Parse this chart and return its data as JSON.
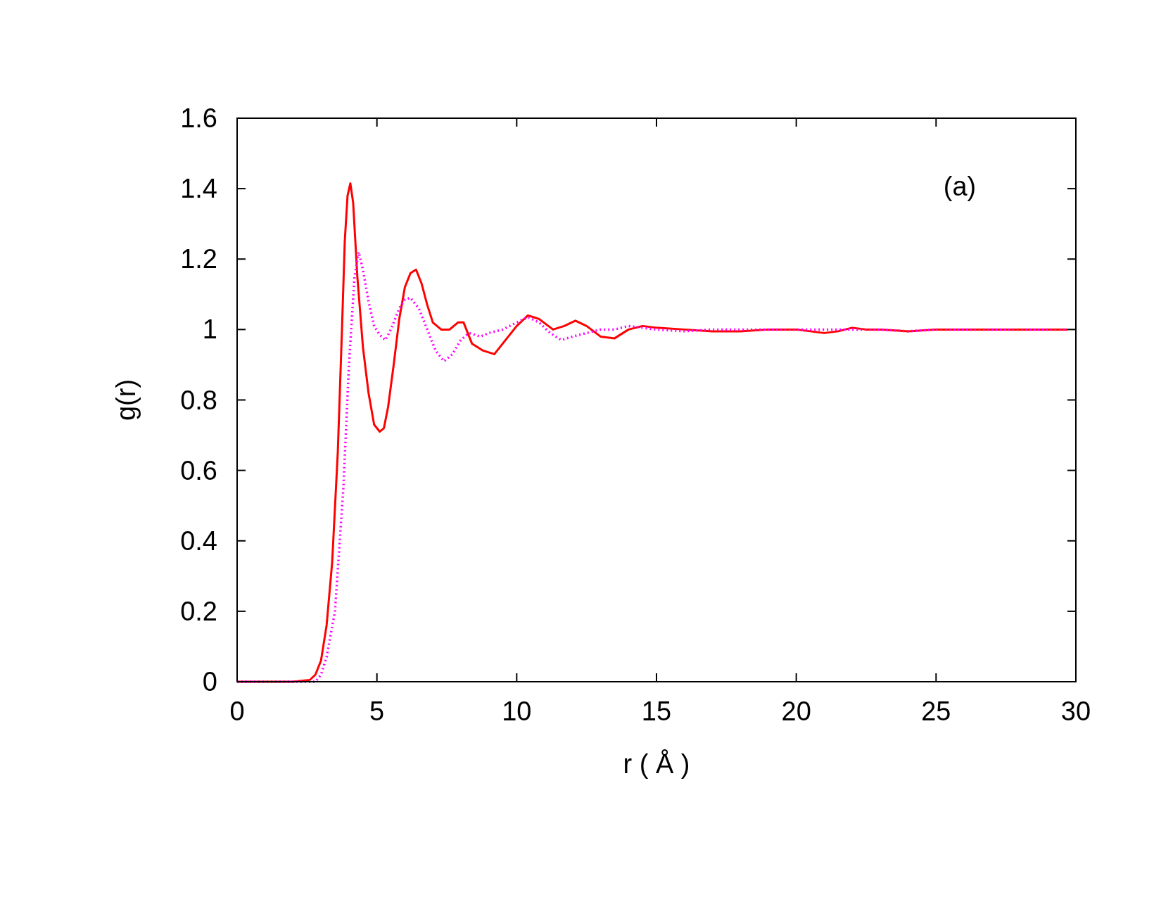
{
  "chart_data": {
    "type": "line",
    "xlabel": "r ( Å )",
    "ylabel": "g(r)",
    "annotations": [
      "(a)"
    ],
    "xlim": [
      0,
      30
    ],
    "ylim": [
      0,
      1.6
    ],
    "xticks": [
      0,
      5,
      10,
      15,
      20,
      25,
      30
    ],
    "yticks": [
      0,
      0.2,
      0.4,
      0.6,
      0.8,
      1,
      1.2,
      1.4,
      1.6
    ],
    "grid": false,
    "series": [
      {
        "color": "#ff0000",
        "line_style": "solid",
        "x": [
          0,
          1,
          2,
          2.6,
          2.8,
          3.0,
          3.2,
          3.4,
          3.6,
          3.75,
          3.85,
          3.95,
          4.05,
          4.15,
          4.3,
          4.5,
          4.7,
          4.9,
          5.1,
          5.25,
          5.4,
          5.6,
          5.8,
          6.0,
          6.2,
          6.4,
          6.6,
          6.8,
          7.0,
          7.3,
          7.6,
          7.9,
          8.1,
          8.4,
          8.8,
          9.2,
          9.6,
          10.0,
          10.4,
          10.8,
          11.3,
          11.7,
          12.1,
          12.5,
          13.0,
          13.5,
          14.0,
          14.5,
          15.0,
          16,
          17,
          18,
          19,
          20,
          21,
          21.5,
          22,
          22.5,
          23,
          24,
          25,
          26,
          27,
          28,
          29,
          29.7
        ],
        "values": [
          0,
          0,
          0,
          0.005,
          0.02,
          0.06,
          0.16,
          0.34,
          0.65,
          1.0,
          1.25,
          1.38,
          1.415,
          1.36,
          1.15,
          0.95,
          0.82,
          0.73,
          0.71,
          0.72,
          0.78,
          0.9,
          1.03,
          1.12,
          1.16,
          1.17,
          1.13,
          1.07,
          1.02,
          1.0,
          1.0,
          1.02,
          1.02,
          0.96,
          0.94,
          0.93,
          0.97,
          1.01,
          1.04,
          1.03,
          1.0,
          1.01,
          1.025,
          1.01,
          0.98,
          0.975,
          1.0,
          1.01,
          1.005,
          1.0,
          0.995,
          0.995,
          1.0,
          1.0,
          0.99,
          0.995,
          1.005,
          1.0,
          1.0,
          0.995,
          1.0,
          1.0,
          1.0,
          1.0,
          1.0,
          1.0
        ]
      },
      {
        "color": "#ff00ff",
        "line_style": "dotted",
        "x": [
          0,
          1,
          2,
          2.8,
          3.0,
          3.2,
          3.5,
          3.8,
          4.0,
          4.2,
          4.35,
          4.5,
          4.7,
          4.9,
          5.1,
          5.3,
          5.5,
          5.8,
          6.0,
          6.2,
          6.5,
          6.8,
          7.1,
          7.4,
          7.7,
          8.0,
          8.3,
          8.7,
          9.0,
          9.5,
          10.0,
          10.4,
          10.8,
          11.2,
          11.6,
          12.0,
          12.5,
          13.0,
          13.5,
          14.0,
          14.5,
          15,
          16,
          17,
          18,
          19,
          20,
          21,
          22,
          23,
          24,
          25,
          26,
          27,
          28,
          29,
          29.7
        ],
        "values": [
          0,
          0,
          0,
          0,
          0.02,
          0.07,
          0.2,
          0.55,
          0.9,
          1.15,
          1.22,
          1.17,
          1.08,
          1.01,
          0.985,
          0.97,
          1.0,
          1.06,
          1.085,
          1.09,
          1.06,
          1.0,
          0.94,
          0.91,
          0.93,
          0.97,
          0.99,
          0.98,
          0.99,
          1.0,
          1.02,
          1.035,
          1.02,
          0.99,
          0.97,
          0.98,
          0.99,
          1.0,
          1.0,
          1.01,
          1.005,
          1.0,
          0.995,
          1.0,
          1.0,
          1.0,
          1.0,
          1.0,
          1.0,
          1.0,
          0.995,
          1.0,
          1.0,
          1.0,
          1.0,
          1.0,
          1.0
        ]
      }
    ]
  }
}
